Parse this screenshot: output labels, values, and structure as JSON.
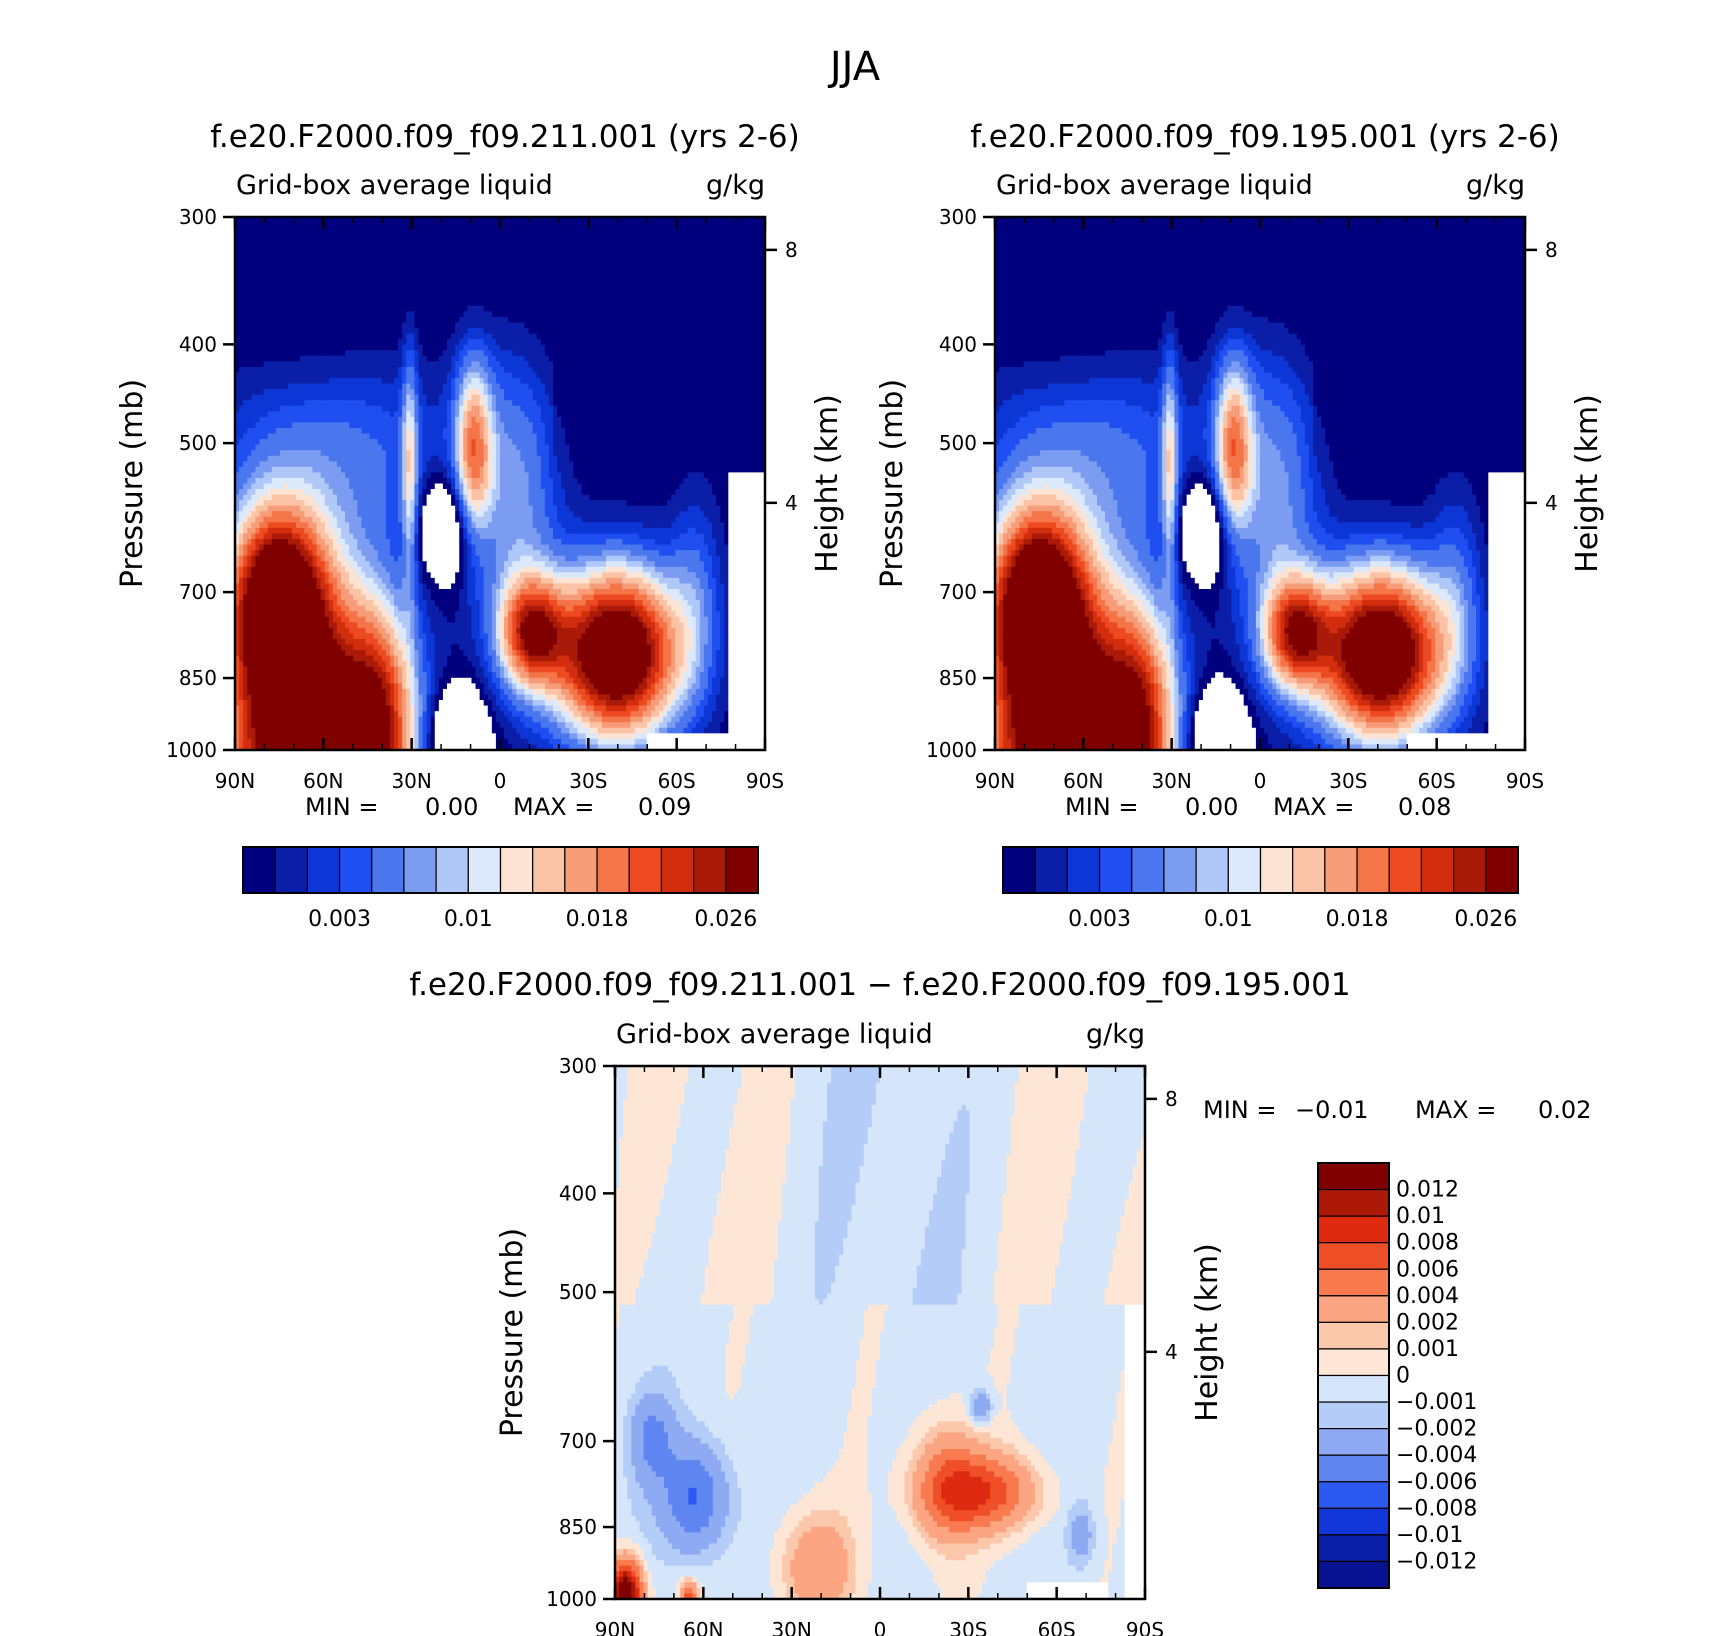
{
  "figure": {
    "title": "JJA"
  },
  "chart_data": [
    {
      "type": "heatmap",
      "title": "f.e20.F2000.f09_f09.211.001 (yrs 2-6)",
      "subtitle_left": "Grid-box average liquid",
      "subtitle_right": "g/kg",
      "ylabel": "Pressure (mb)",
      "y2label": "Height (km)",
      "x_ticks": [
        "90N",
        "60N",
        "30N",
        "0",
        "30S",
        "60S",
        "90S"
      ],
      "y_ticks": [
        "300",
        "400",
        "500",
        "700",
        "850",
        "1000"
      ],
      "y2_ticks": [
        "8",
        "4"
      ],
      "min_label": "MIN =",
      "min_value": "0.00",
      "max_label": "MAX =",
      "max_value": "0.09",
      "colorbar_labels": [
        "0.003",
        "0.01",
        "0.018",
        "0.026"
      ]
    },
    {
      "type": "heatmap",
      "title": "f.e20.F2000.f09_f09.195.001 (yrs 2-6)",
      "subtitle_left": "Grid-box average liquid",
      "subtitle_right": "g/kg",
      "ylabel": "Pressure (mb)",
      "y2label": "Height (km)",
      "x_ticks": [
        "90N",
        "60N",
        "30N",
        "0",
        "30S",
        "60S",
        "90S"
      ],
      "y_ticks": [
        "300",
        "400",
        "500",
        "700",
        "850",
        "1000"
      ],
      "y2_ticks": [
        "8",
        "4"
      ],
      "min_label": "MIN =",
      "min_value": "0.00",
      "max_label": "MAX =",
      "max_value": "0.08",
      "colorbar_labels": [
        "0.003",
        "0.01",
        "0.018",
        "0.026"
      ]
    },
    {
      "type": "heatmap",
      "title": "f.e20.F2000.f09_f09.211.001 − f.e20.F2000.f09_f09.195.001",
      "subtitle_left": "Grid-box average liquid",
      "subtitle_right": "g/kg",
      "ylabel": "Pressure (mb)",
      "y2label": "Height (km)",
      "x_ticks": [
        "90N",
        "60N",
        "30N",
        "0",
        "30S",
        "60S",
        "90S"
      ],
      "y_ticks": [
        "300",
        "400",
        "500",
        "700",
        "850",
        "1000"
      ],
      "y2_ticks": [
        "8",
        "4"
      ],
      "min_label": "MIN =",
      "min_value": "−0.01",
      "max_label": "MAX =",
      "max_value": "0.02",
      "colorbar_labels": [
        "0.012",
        "0.01",
        "0.008",
        "0.006",
        "0.004",
        "0.002",
        "0.001",
        "0",
        "−0.001",
        "−0.002",
        "−0.004",
        "−0.006",
        "−0.008",
        "−0.01",
        "−0.012"
      ]
    }
  ],
  "palettes": {
    "absolute": [
      "#00007f",
      "#0a1ea8",
      "#0c36d6",
      "#1f4ff0",
      "#4a77ee",
      "#7c9cf2",
      "#b0c8f8",
      "#dce9fa",
      "#fde3d3",
      "#fbc3a6",
      "#f79c78",
      "#f47548",
      "#ee4a22",
      "#d22d0c",
      "#aa1a08",
      "#800000"
    ],
    "difference": [
      "#800000",
      "#ac1a07",
      "#dd2a10",
      "#f04e26",
      "#f97a4e",
      "#fba582",
      "#fcc8ac",
      "#fde6d6",
      "#d6e6fa",
      "#b4ccf8",
      "#8eaaf2",
      "#5f86f0",
      "#2c5af0",
      "#1236d8",
      "#0a1ea8",
      "#06128f"
    ]
  }
}
